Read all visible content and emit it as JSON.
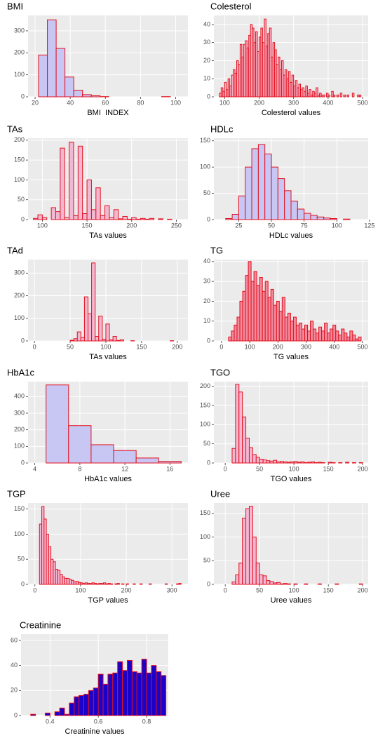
{
  "chart_data": [
    {
      "type": "histogram",
      "title": "BMI",
      "xlabel": "BMI  INDEX",
      "fill": "#c8c6f2",
      "stroke": "#e3101e",
      "bins": [
        22,
        27,
        32,
        37,
        42,
        47,
        52,
        57,
        62,
        67,
        72,
        77,
        82,
        87,
        92,
        97
      ],
      "values": [
        190,
        350,
        220,
        90,
        30,
        10,
        5,
        1,
        0,
        0,
        0,
        0,
        0,
        0,
        1
      ],
      "xlim": [
        16,
        107
      ],
      "ylim": [
        0,
        370
      ],
      "xticks": [
        20,
        40,
        60,
        80,
        100
      ],
      "yticks": [
        0,
        100,
        200,
        300
      ],
      "grid": true
    },
    {
      "type": "histogram",
      "title": "Colesterol",
      "xlabel": "Colesterol values",
      "fill": "#f5b3c6",
      "stroke": "#e3101e",
      "bins": [
        85,
        90,
        95,
        100,
        105,
        110,
        115,
        120,
        125,
        130,
        135,
        140,
        145,
        150,
        155,
        160,
        165,
        170,
        175,
        180,
        185,
        190,
        195,
        200,
        205,
        210,
        215,
        220,
        225,
        230,
        235,
        240,
        245,
        250,
        255,
        260,
        265,
        270,
        275,
        280,
        285,
        290,
        295,
        300,
        305,
        310,
        315,
        320,
        325,
        330,
        335,
        340,
        345,
        350,
        355,
        360,
        365,
        370,
        375,
        380,
        385,
        390,
        395,
        400,
        405,
        410,
        415,
        420,
        425,
        430,
        435,
        440,
        445,
        450,
        455,
        460,
        465,
        470,
        475,
        480,
        485,
        490,
        495
      ],
      "values": [
        2,
        5,
        3,
        8,
        4,
        10,
        6,
        12,
        15,
        13,
        20,
        18,
        29,
        22,
        29,
        31,
        27,
        34,
        40,
        38,
        30,
        36,
        25,
        33,
        38,
        30,
        43,
        28,
        35,
        38,
        22,
        30,
        26,
        18,
        22,
        15,
        20,
        12,
        15,
        10,
        14,
        8,
        12,
        6,
        9,
        5,
        7,
        4,
        5,
        3,
        6,
        2,
        4,
        1,
        3,
        2,
        5,
        1,
        2,
        1,
        1,
        0,
        2,
        1,
        0,
        3,
        1,
        0,
        1,
        0,
        2,
        0,
        1,
        0,
        1,
        0,
        0,
        2,
        0,
        0,
        1,
        1
      ],
      "xlim": [
        69,
        516
      ],
      "ylim": [
        0,
        45
      ],
      "xticks": [
        100,
        200,
        300,
        400,
        500
      ],
      "yticks": [
        0,
        10,
        20,
        30,
        40
      ],
      "grid": true
    },
    {
      "type": "histogram",
      "title": "TAs",
      "xlabel": "TAs values",
      "fill": "#f2b8d2",
      "stroke": "#e3101e",
      "bins": [
        90,
        95,
        100,
        105,
        110,
        115,
        120,
        125,
        130,
        135,
        140,
        145,
        150,
        155,
        160,
        165,
        170,
        175,
        180,
        185,
        190,
        195,
        200,
        205,
        210,
        215,
        220,
        225,
        230,
        235,
        240,
        245
      ],
      "values": [
        3,
        12,
        5,
        0,
        30,
        20,
        180,
        5,
        195,
        10,
        185,
        15,
        100,
        25,
        80,
        10,
        35,
        5,
        25,
        2,
        8,
        1,
        5,
        1,
        3,
        1,
        3,
        0,
        2,
        0,
        1
      ],
      "xlim": [
        84,
        263
      ],
      "ylim": [
        0,
        205
      ],
      "xticks": [
        100,
        150,
        200,
        250
      ],
      "yticks": [
        0,
        50,
        100,
        150,
        200
      ],
      "grid": true
    },
    {
      "type": "histogram",
      "title": "HDLc",
      "xlabel": "HDLc values",
      "fill": "#c8c6f2",
      "stroke": "#e3101e",
      "bins": [
        15,
        20,
        25,
        30,
        35,
        40,
        45,
        50,
        55,
        60,
        65,
        70,
        75,
        80,
        85,
        90,
        95,
        100,
        105,
        110,
        115
      ],
      "values": [
        2,
        10,
        45,
        100,
        135,
        143,
        125,
        100,
        78,
        55,
        35,
        20,
        12,
        8,
        5,
        3,
        2,
        0,
        1,
        0
      ],
      "xlim": [
        6,
        124
      ],
      "ylim": [
        0,
        155
      ],
      "xticks": [
        25,
        50,
        75,
        100,
        125
      ],
      "yticks": [
        0,
        50,
        100,
        150
      ],
      "grid": true
    },
    {
      "type": "histogram",
      "title": "TAd",
      "xlabel": "TAs values",
      "fill": "#f2b8d2",
      "stroke": "#e3101e",
      "bins": [
        5,
        10,
        15,
        20,
        25,
        30,
        35,
        40,
        45,
        50,
        55,
        60,
        65,
        70,
        75,
        80,
        85,
        90,
        95,
        100,
        105,
        110,
        115,
        120,
        125,
        130,
        135,
        140,
        145,
        150,
        155,
        160,
        165,
        170,
        175,
        180,
        185,
        190,
        195
      ],
      "values": [
        0,
        0,
        0,
        0,
        0,
        0,
        0,
        0,
        0,
        3,
        10,
        40,
        15,
        195,
        120,
        345,
        20,
        110,
        8,
        75,
        5,
        20,
        2,
        5,
        0,
        0,
        1,
        0,
        0,
        0,
        0,
        0,
        0,
        0,
        0,
        0,
        0,
        1
      ],
      "xlim": [
        -9,
        215
      ],
      "ylim": [
        0,
        360
      ],
      "xticks": [
        0,
        50,
        100,
        150,
        200
      ],
      "yticks": [
        0,
        100,
        200,
        300
      ],
      "grid": true
    },
    {
      "type": "histogram",
      "title": "TG",
      "xlabel": "TG values",
      "fill": "#f08a9c",
      "stroke": "#e3101e",
      "bins": [
        25,
        35,
        45,
        55,
        65,
        75,
        85,
        95,
        105,
        115,
        125,
        135,
        145,
        155,
        165,
        175,
        185,
        195,
        205,
        215,
        225,
        235,
        245,
        255,
        265,
        275,
        285,
        295,
        305,
        315,
        325,
        335,
        345,
        355,
        365,
        375,
        385,
        395,
        405,
        415,
        425,
        435,
        445,
        455,
        465,
        475,
        485,
        495
      ],
      "values": [
        2,
        5,
        8,
        12,
        20,
        25,
        33,
        40,
        30,
        35,
        28,
        32,
        25,
        30,
        22,
        26,
        18,
        20,
        15,
        22,
        12,
        14,
        10,
        12,
        8,
        9,
        6,
        8,
        5,
        10,
        6,
        4,
        7,
        5,
        9,
        4,
        6,
        8,
        5,
        3,
        6,
        4,
        2,
        5,
        3,
        1,
        2
      ],
      "xlim": [
        -27,
        520
      ],
      "ylim": [
        0,
        41
      ],
      "xticks": [
        0,
        100,
        200,
        300,
        400,
        500
      ],
      "yticks": [
        0,
        10,
        20,
        30,
        40
      ],
      "grid": true
    },
    {
      "type": "histogram",
      "title": "HbA1c",
      "xlabel": "HbA1c values",
      "fill": "#c8c6f2",
      "stroke": "#e3101e",
      "bins": [
        5,
        7,
        9,
        11,
        13,
        15,
        17
      ],
      "values": [
        470,
        225,
        110,
        75,
        30,
        10
      ],
      "xlim": [
        3.4,
        17.6
      ],
      "ylim": [
        0,
        490
      ],
      "xticks": [
        4,
        8,
        12,
        16
      ],
      "yticks": [
        0,
        100,
        200,
        300,
        400
      ],
      "grid": true
    },
    {
      "type": "histogram",
      "title": "TGO",
      "xlabel": "TGO values",
      "fill": "#f2b8d2",
      "stroke": "#e3101e",
      "bins": [
        10,
        15,
        20,
        25,
        30,
        35,
        40,
        45,
        50,
        55,
        60,
        65,
        70,
        75,
        80,
        85,
        90,
        95,
        100,
        105,
        110,
        115,
        120,
        125,
        130,
        135,
        140,
        145,
        150,
        155,
        160,
        165,
        170,
        175,
        180,
        185,
        190,
        195,
        200
      ],
      "values": [
        38,
        205,
        185,
        120,
        65,
        40,
        22,
        15,
        10,
        8,
        6,
        5,
        7,
        3,
        4,
        3,
        2,
        3,
        4,
        2,
        3,
        1,
        2,
        3,
        1,
        2,
        1,
        0,
        2,
        1,
        0,
        1,
        0,
        2,
        0,
        1,
        0,
        1
      ],
      "xlim": [
        -16.5,
        208
      ],
      "ylim": [
        0,
        212
      ],
      "xticks": [
        0,
        50,
        100,
        150,
        200
      ],
      "yticks": [
        0,
        50,
        100,
        150,
        200
      ],
      "grid": true
    },
    {
      "type": "histogram",
      "title": "TGP",
      "xlabel": "TGP values",
      "fill": "#f2b8d2",
      "stroke": "#e3101e",
      "bins": [
        10,
        15,
        20,
        25,
        30,
        35,
        40,
        45,
        50,
        55,
        60,
        65,
        70,
        75,
        80,
        85,
        90,
        95,
        100,
        105,
        110,
        115,
        120,
        125,
        130,
        135,
        140,
        145,
        150,
        155,
        160,
        165,
        170,
        175,
        180,
        185,
        190,
        195,
        200,
        205,
        210,
        215,
        220,
        225,
        230,
        235,
        240,
        245,
        250,
        255,
        260,
        265,
        270,
        275,
        280,
        285,
        290,
        295,
        300,
        305,
        310,
        315,
        320
      ],
      "values": [
        120,
        155,
        130,
        100,
        75,
        50,
        45,
        30,
        28,
        20,
        15,
        12,
        12,
        10,
        8,
        5,
        6,
        4,
        3,
        2,
        3,
        2,
        2,
        3,
        2,
        1,
        2,
        2,
        3,
        1,
        2,
        1,
        0,
        1,
        2,
        0,
        1,
        0,
        1,
        0,
        0,
        1,
        0,
        0,
        1,
        0,
        0,
        0,
        1,
        0,
        0,
        0,
        0,
        0,
        0,
        1,
        0,
        0,
        0,
        0,
        1,
        2
      ],
      "xlim": [
        -15,
        335
      ],
      "ylim": [
        0,
        162
      ],
      "xticks": [
        0,
        100,
        200,
        300
      ],
      "yticks": [
        0,
        50,
        100,
        150
      ],
      "grid": true
    },
    {
      "type": "histogram",
      "title": "Uree",
      "xlabel": "Uree values",
      "fill": "#f2b8d2",
      "stroke": "#e3101e",
      "bins": [
        10,
        15,
        20,
        25,
        30,
        35,
        40,
        45,
        50,
        55,
        60,
        65,
        70,
        75,
        80,
        85,
        90,
        95,
        100,
        105,
        110,
        115,
        120,
        125,
        130,
        135,
        140,
        145,
        150,
        155,
        160,
        165,
        170,
        175,
        180,
        185,
        190,
        195,
        200
      ],
      "values": [
        5,
        20,
        45,
        140,
        160,
        165,
        100,
        45,
        20,
        18,
        8,
        6,
        3,
        4,
        1,
        2,
        1,
        0,
        1,
        0,
        0,
        1,
        0,
        0,
        0,
        1,
        0,
        0,
        0,
        0,
        1,
        0,
        0,
        0,
        0,
        0,
        0,
        1
      ],
      "xlim": [
        -16.5,
        208
      ],
      "ylim": [
        0,
        172
      ],
      "xticks": [
        0,
        50,
        100,
        150,
        200
      ],
      "yticks": [
        0,
        50,
        100,
        150
      ],
      "grid": true
    },
    {
      "type": "histogram",
      "title": "Creatinine",
      "xlabel": "Creatinine values",
      "fill": "#1a00c8",
      "stroke": "#e3101e",
      "bins": [
        0.32,
        0.34,
        0.36,
        0.38,
        0.4,
        0.42,
        0.44,
        0.46,
        0.48,
        0.5,
        0.52,
        0.54,
        0.56,
        0.58,
        0.6,
        0.62,
        0.64,
        0.66,
        0.68,
        0.7,
        0.72,
        0.74,
        0.76,
        0.78,
        0.8,
        0.82,
        0.84,
        0.86,
        0.88
      ],
      "values": [
        1,
        0,
        0,
        2,
        0,
        3,
        6,
        1,
        10,
        15,
        16,
        17,
        20,
        22,
        33,
        25,
        33,
        34,
        43,
        36,
        44,
        35,
        34,
        45,
        34,
        40,
        35,
        32
      ],
      "xlim": [
        0.28,
        0.89
      ],
      "ylim": [
        0,
        65
      ],
      "xticks": [
        0.4,
        0.6,
        0.8
      ],
      "yticks": [
        0,
        20,
        40,
        60
      ],
      "grid": true
    }
  ]
}
